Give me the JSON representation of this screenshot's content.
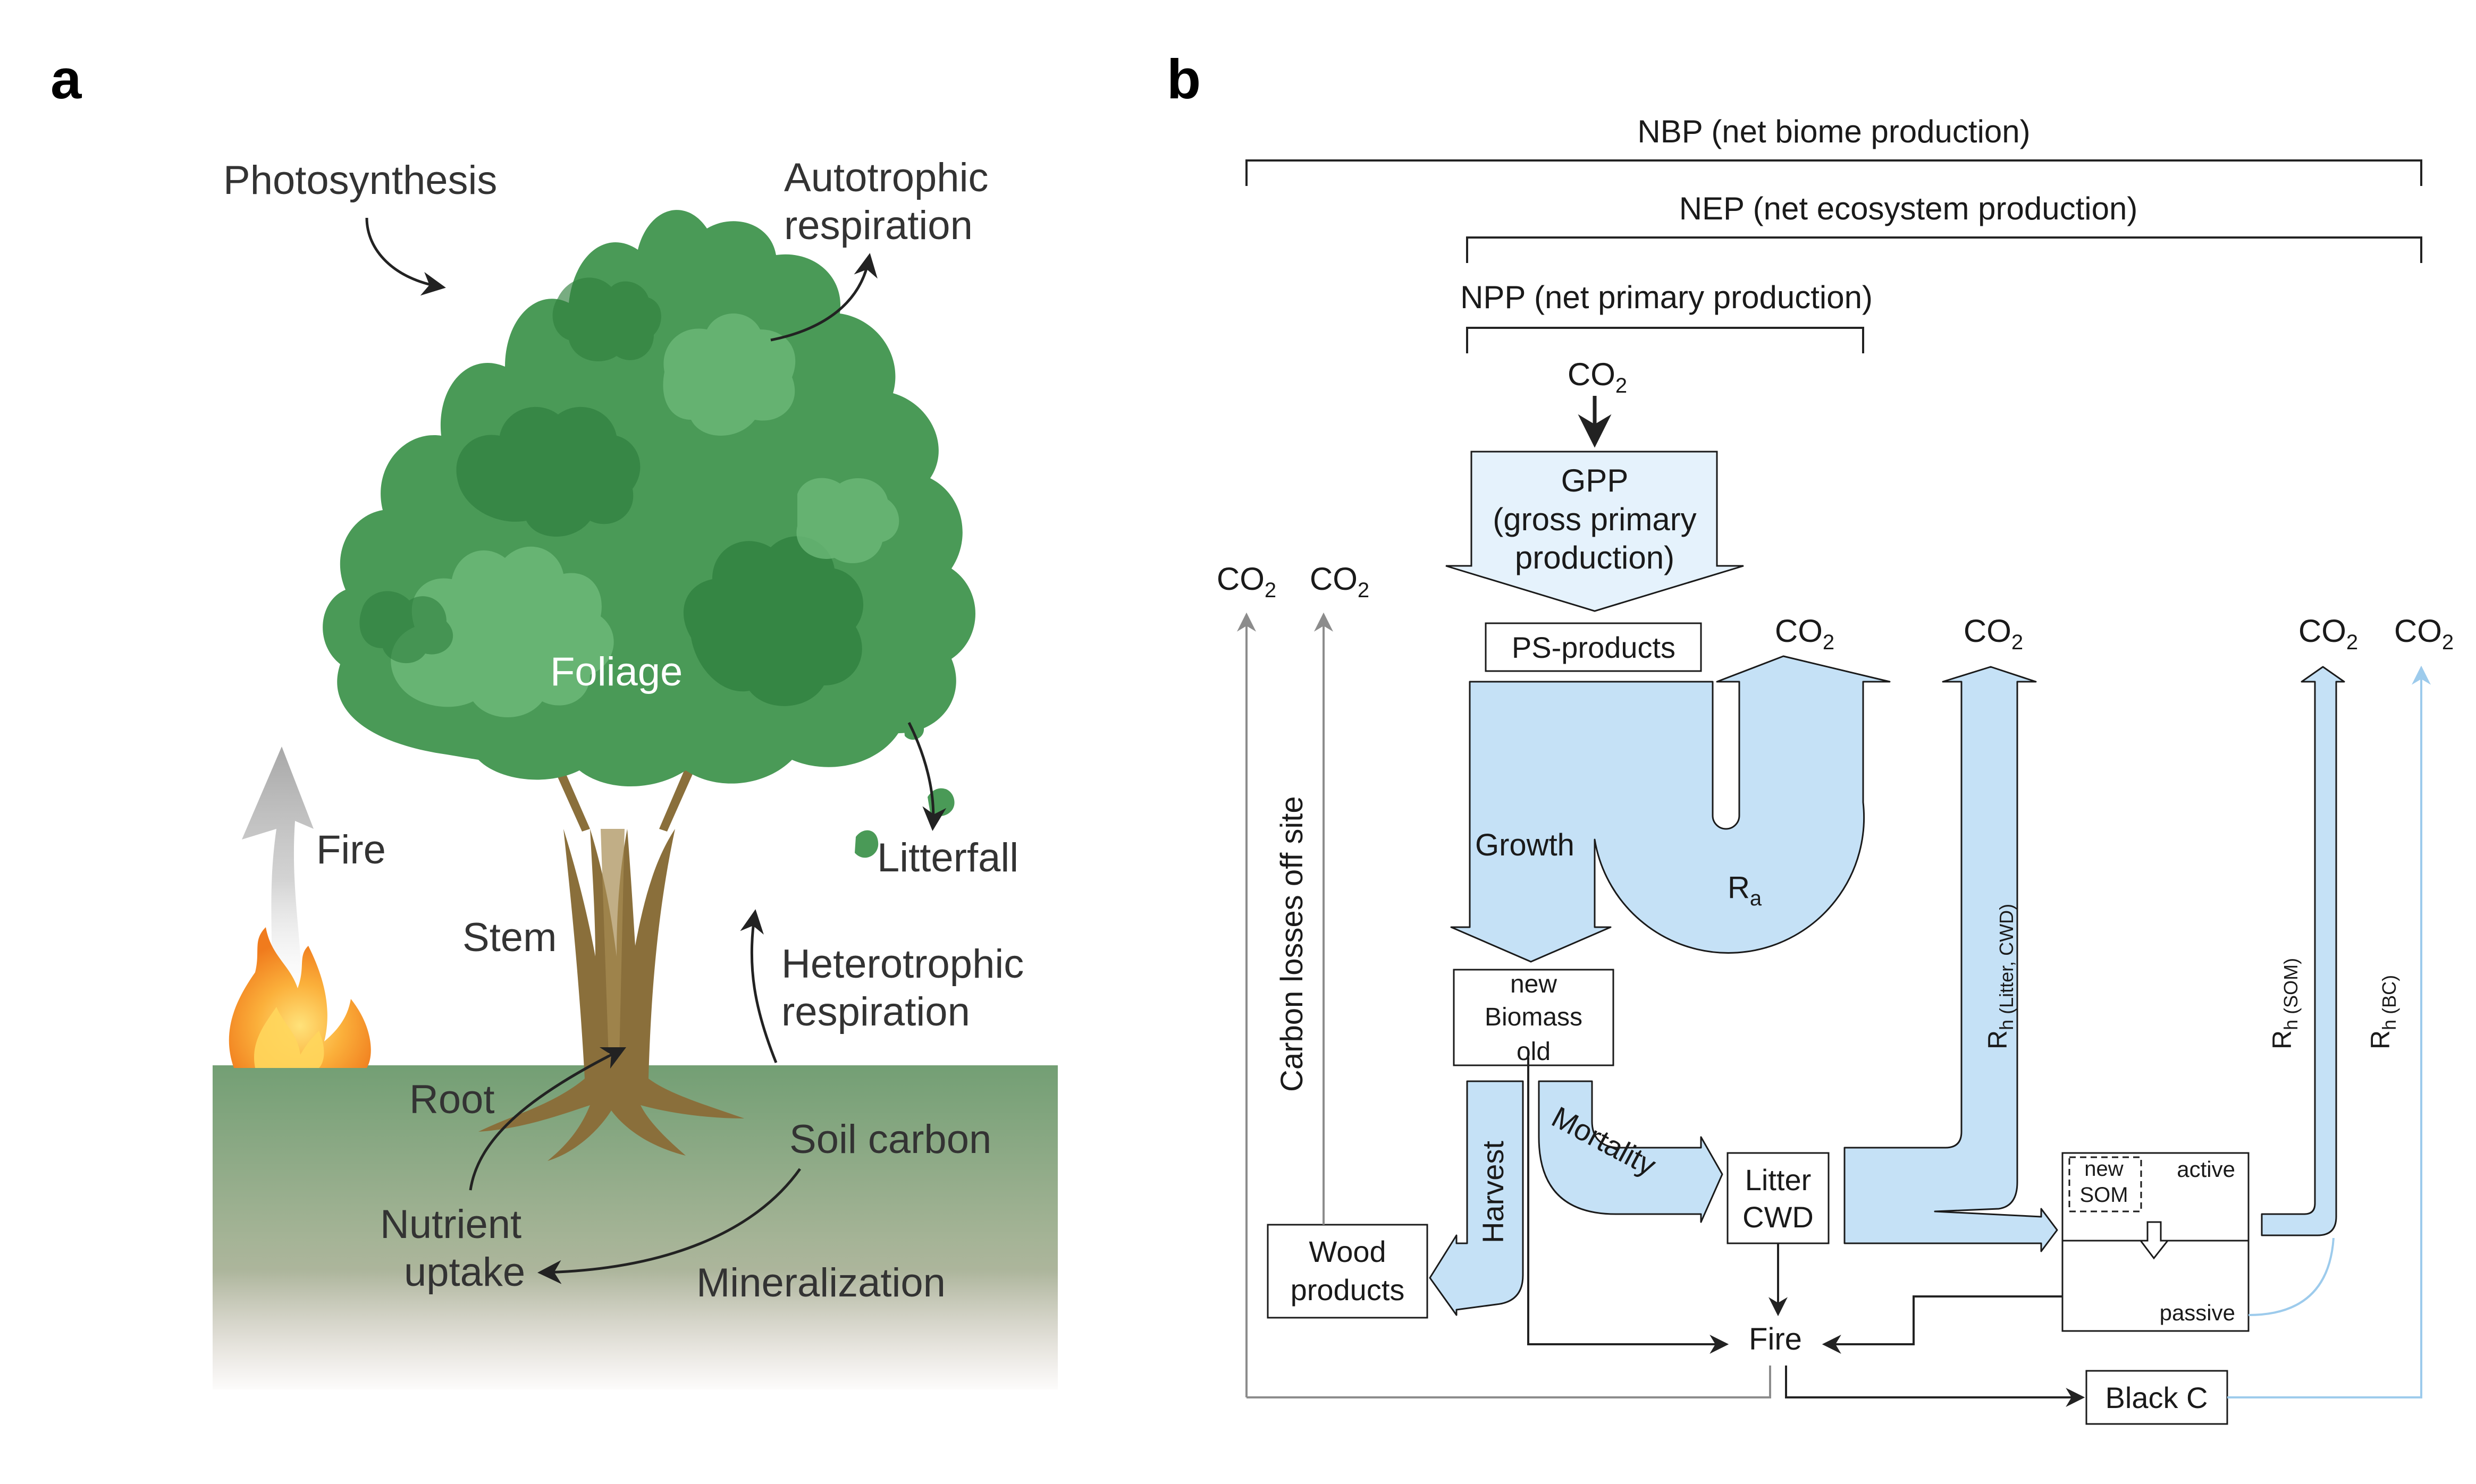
{
  "panel_a": {
    "letter": "a",
    "labels": {
      "photosynthesis": "Photosynthesis",
      "autotrophic_1": "Autotrophic",
      "autotrophic_2": "respiration",
      "foliage": "Foliage",
      "fire": "Fire",
      "litterfall": "Litterfall",
      "stem": "Stem",
      "heterotrophic_1": "Heterotrophic",
      "heterotrophic_2": "respiration",
      "root": "Root",
      "soil_carbon": "Soil carbon",
      "nutrient_1": "Nutrient",
      "nutrient_2": "uptake",
      "mineralization": "Mineralization"
    },
    "colors": {
      "foliage_dark": "#2f7f3e",
      "foliage_mid": "#4a9a57",
      "foliage_light": "#6cb878",
      "trunk": "#8a6f3b",
      "ground_top": "#739f74",
      "ground_bottom": "#c8b8ab",
      "fire": "#f39a1e"
    }
  },
  "panel_b": {
    "letter": "b",
    "nbp": "NBP (net biome production)",
    "nep": "NEP (net ecosystem production)",
    "npp": "NPP (net primary production)",
    "co2_base": "CO",
    "co2_sub": "2",
    "gpp_1": "GPP",
    "gpp_2": "(gross primary",
    "gpp_3": "production)",
    "ps_products": "PS-products",
    "growth": "Growth",
    "ra_base": "R",
    "ra_sub": "a",
    "biomass_new": "new",
    "biomass_mid": "Biomass",
    "biomass_old": "old",
    "harvest": "Harvest",
    "mortality": "Mortality",
    "litter": "Litter",
    "cwd": "CWD",
    "wood_1": "Wood",
    "wood_2": "products",
    "fire": "Fire",
    "black_c": "Black C",
    "carbon_losses": "Carbon losses off site",
    "rh_base": "R",
    "rh_litter_sub": "h (Litter, CWD)",
    "rh_som_sub": "h (SOM)",
    "rh_bc_sub": "h (BC)",
    "som_new_1": "new",
    "som_new_2": "SOM",
    "som_active": "active",
    "som_passive": "passive",
    "colors": {
      "flow_fill": "#c5e1f6",
      "gpp_fill": "#e5f2fc",
      "outline": "#1a1a1a",
      "grey_line": "#8c8c8c",
      "light_blue_line": "#9dcbec"
    }
  }
}
